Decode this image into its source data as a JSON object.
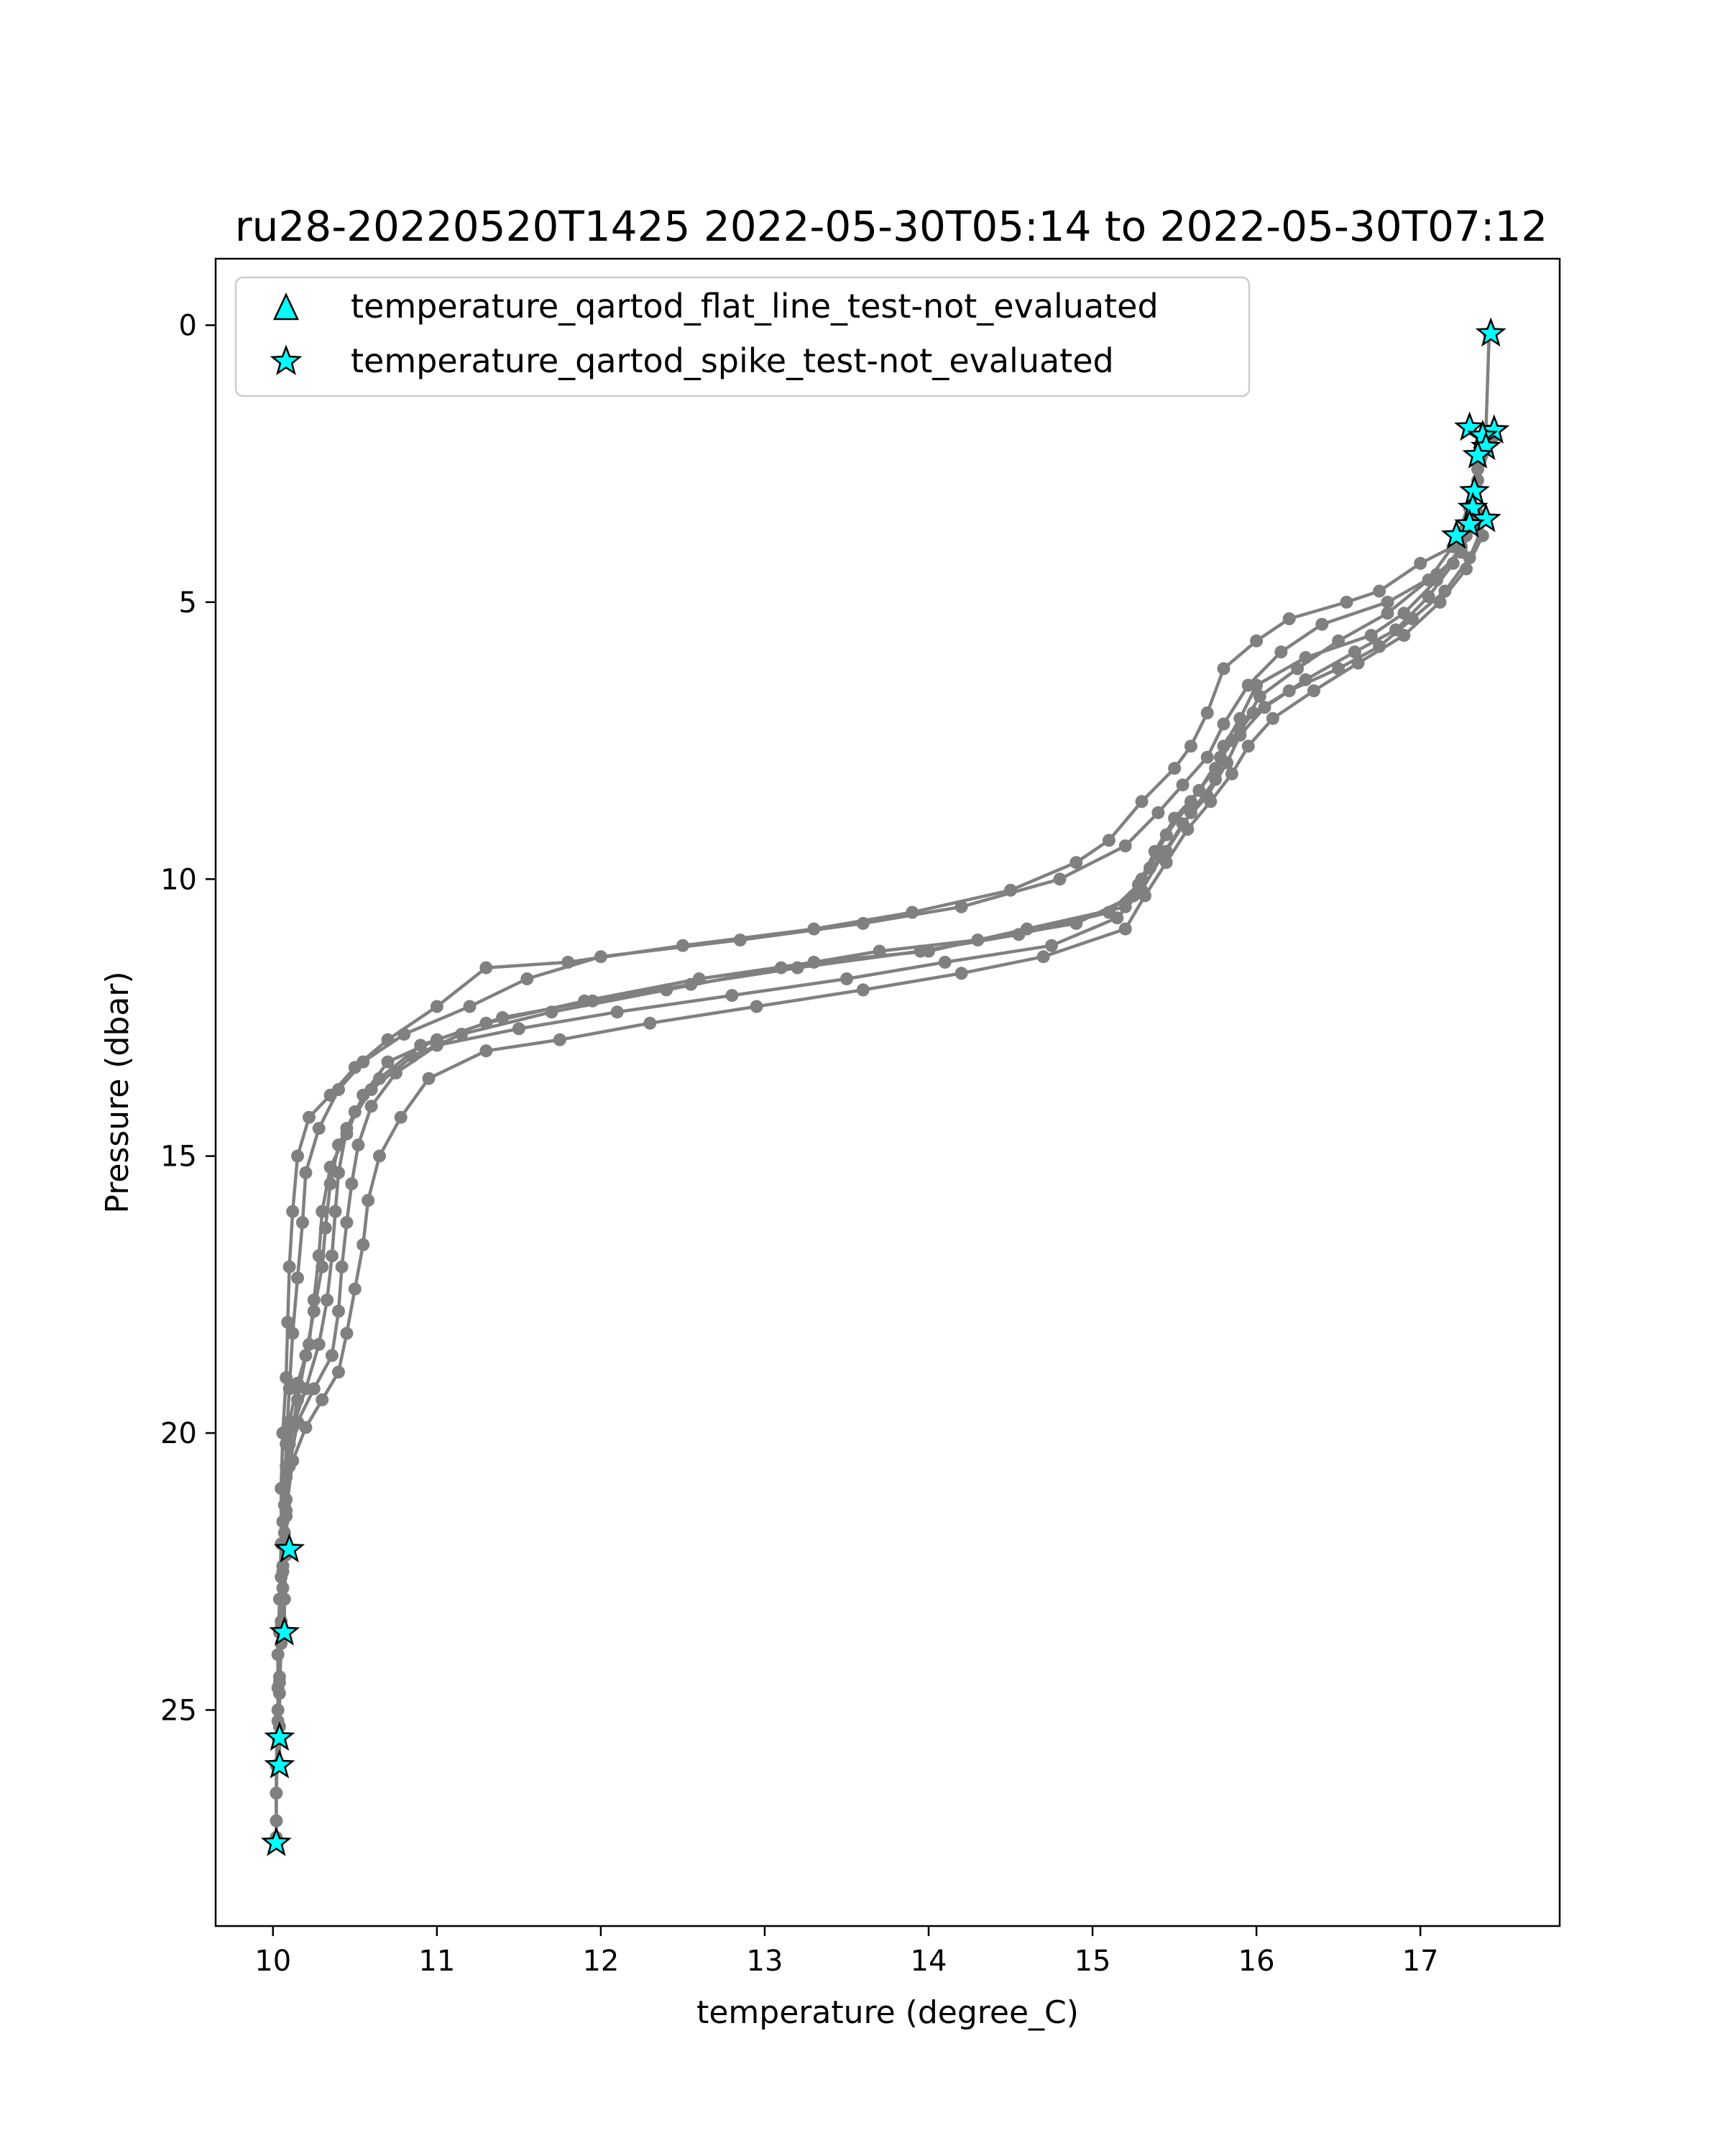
{
  "chart_data": {
    "type": "line",
    "title": "ru28-20220520T1425 2022-05-30T05:14 to 2022-05-30T07:12",
    "xlabel": "temperature (degree_C)",
    "ylabel": "Pressure (dbar)",
    "xlim": [
      9.65,
      17.85
    ],
    "ylim": [
      28.9,
      -1.2
    ],
    "y_inverted": true,
    "grid": false,
    "x_ticks": [
      10,
      11,
      12,
      13,
      14,
      15,
      16,
      17
    ],
    "y_ticks": [
      0,
      5,
      10,
      15,
      20,
      25
    ],
    "colors": {
      "profile": "#808080",
      "marker": "#00ffff",
      "marker_edge": "#000000"
    },
    "legend": {
      "placement": "upper-left",
      "entries": [
        {
          "label": "temperature_qartod_flat_line_test-not_evaluated",
          "marker": "triangle"
        },
        {
          "label": "temperature_qartod_spike_test-not_evaluated",
          "marker": "star"
        }
      ]
    },
    "series": [
      {
        "points": [
          [
            17.42,
            0.15
          ],
          [
            17.4,
            1.9
          ],
          [
            17.35,
            2.6
          ],
          [
            17.3,
            3.3
          ],
          [
            17.28,
            3.8
          ],
          [
            17.2,
            4.0
          ],
          [
            17.0,
            4.3
          ],
          [
            16.75,
            4.8
          ],
          [
            16.55,
            5.0
          ],
          [
            16.2,
            5.3
          ],
          [
            16.0,
            5.7
          ],
          [
            15.8,
            6.2
          ],
          [
            15.7,
            7.0
          ],
          [
            15.6,
            7.6
          ],
          [
            15.5,
            8.0
          ],
          [
            15.3,
            8.6
          ],
          [
            15.1,
            9.3
          ],
          [
            14.9,
            9.7
          ],
          [
            14.5,
            10.2
          ],
          [
            13.9,
            10.6
          ],
          [
            13.3,
            10.9
          ],
          [
            12.5,
            11.2
          ],
          [
            11.8,
            11.5
          ],
          [
            11.3,
            11.6
          ],
          [
            11.0,
            12.3
          ],
          [
            10.7,
            12.9
          ],
          [
            10.5,
            13.4
          ],
          [
            10.35,
            13.9
          ],
          [
            10.22,
            14.3
          ],
          [
            10.15,
            15.0
          ],
          [
            10.12,
            16.0
          ],
          [
            10.1,
            17.0
          ],
          [
            10.09,
            18.0
          ],
          [
            10.08,
            19.0
          ],
          [
            10.06,
            20.0
          ],
          [
            10.05,
            21.0
          ],
          [
            10.05,
            22.0
          ],
          [
            10.04,
            23.0
          ],
          [
            10.03,
            24.0
          ],
          [
            10.03,
            25.0
          ],
          [
            10.02,
            26.0
          ],
          [
            10.02,
            27.0
          ],
          [
            10.02,
            27.4
          ]
        ]
      },
      {
        "points": [
          [
            17.45,
            2.0
          ],
          [
            17.35,
            2.8
          ],
          [
            17.32,
            3.6
          ],
          [
            17.25,
            4.1
          ],
          [
            17.1,
            4.5
          ],
          [
            16.8,
            5.0
          ],
          [
            16.4,
            5.4
          ],
          [
            16.15,
            5.9
          ],
          [
            15.95,
            6.5
          ],
          [
            15.8,
            7.2
          ],
          [
            15.7,
            7.8
          ],
          [
            15.55,
            8.3
          ],
          [
            15.4,
            8.8
          ],
          [
            15.2,
            9.4
          ],
          [
            14.8,
            10.0
          ],
          [
            14.2,
            10.5
          ],
          [
            13.6,
            10.8
          ],
          [
            12.85,
            11.1
          ],
          [
            12.0,
            11.4
          ],
          [
            11.55,
            11.8
          ],
          [
            11.2,
            12.3
          ],
          [
            10.8,
            12.8
          ],
          [
            10.55,
            13.3
          ],
          [
            10.4,
            13.8
          ],
          [
            10.28,
            14.5
          ],
          [
            10.2,
            15.3
          ],
          [
            10.18,
            16.2
          ],
          [
            10.15,
            17.2
          ],
          [
            10.12,
            18.2
          ],
          [
            10.1,
            19.2
          ],
          [
            10.08,
            20.2
          ],
          [
            10.07,
            21.3
          ],
          [
            10.1,
            22.1
          ]
        ]
      },
      {
        "points": [
          [
            17.35,
            3.4
          ],
          [
            17.25,
            4.0
          ],
          [
            17.1,
            4.6
          ],
          [
            16.9,
            5.2
          ],
          [
            16.7,
            5.6
          ],
          [
            16.3,
            6.0
          ],
          [
            16.0,
            6.5
          ],
          [
            15.9,
            7.1
          ],
          [
            15.8,
            7.6
          ],
          [
            15.75,
            8.2
          ],
          [
            15.6,
            8.8
          ],
          [
            15.45,
            9.5
          ],
          [
            15.3,
            10.0
          ],
          [
            15.2,
            10.5
          ],
          [
            14.6,
            10.9
          ],
          [
            14.0,
            11.3
          ],
          [
            13.3,
            11.5
          ],
          [
            12.6,
            11.8
          ],
          [
            11.9,
            12.2
          ],
          [
            11.3,
            12.6
          ],
          [
            10.9,
            13.0
          ],
          [
            10.65,
            13.6
          ],
          [
            10.5,
            14.2
          ],
          [
            10.4,
            14.8
          ],
          [
            10.35,
            15.5
          ],
          [
            10.32,
            16.3
          ],
          [
            10.3,
            17.0
          ],
          [
            10.25,
            17.8
          ],
          [
            10.2,
            18.6
          ],
          [
            10.15,
            19.4
          ],
          [
            10.1,
            20.2
          ],
          [
            10.08,
            21.2
          ],
          [
            10.08,
            22.2
          ],
          [
            10.07,
            23.0
          ],
          [
            10.07,
            23.6
          ]
        ]
      },
      {
        "points": [
          [
            17.4,
            3.5
          ],
          [
            17.3,
            4.2
          ],
          [
            17.15,
            4.8
          ],
          [
            16.95,
            5.3
          ],
          [
            16.75,
            5.8
          ],
          [
            16.5,
            6.2
          ],
          [
            16.2,
            6.6
          ],
          [
            15.98,
            7.0
          ],
          [
            15.85,
            7.5
          ],
          [
            15.75,
            8.0
          ],
          [
            15.6,
            8.6
          ],
          [
            15.45,
            9.2
          ],
          [
            15.35,
            9.8
          ],
          [
            15.25,
            10.3
          ],
          [
            14.9,
            10.8
          ],
          [
            14.3,
            11.1
          ],
          [
            13.7,
            11.3
          ],
          [
            13.1,
            11.6
          ],
          [
            12.4,
            12.0
          ],
          [
            11.7,
            12.4
          ],
          [
            11.15,
            12.8
          ],
          [
            10.85,
            13.2
          ],
          [
            10.6,
            13.8
          ],
          [
            10.45,
            14.5
          ],
          [
            10.4,
            15.3
          ],
          [
            10.38,
            16.0
          ],
          [
            10.36,
            16.8
          ],
          [
            10.33,
            17.6
          ],
          [
            10.28,
            18.4
          ],
          [
            10.2,
            19.2
          ],
          [
            10.12,
            19.9
          ],
          [
            10.08,
            20.8
          ],
          [
            10.07,
            21.8
          ],
          [
            10.06,
            22.8
          ],
          [
            10.05,
            23.8
          ],
          [
            10.04,
            24.7
          ],
          [
            10.04,
            25.5
          ]
        ]
      },
      {
        "points": [
          [
            17.3,
            3.6
          ],
          [
            17.2,
            4.3
          ],
          [
            17.05,
            4.9
          ],
          [
            16.85,
            5.5
          ],
          [
            16.6,
            5.9
          ],
          [
            16.3,
            6.4
          ],
          [
            16.05,
            6.9
          ],
          [
            15.9,
            7.4
          ],
          [
            15.82,
            7.9
          ],
          [
            15.7,
            8.5
          ],
          [
            15.55,
            9.0
          ],
          [
            15.42,
            9.6
          ],
          [
            15.3,
            10.2
          ],
          [
            15.15,
            10.7
          ],
          [
            14.75,
            11.2
          ],
          [
            14.1,
            11.5
          ],
          [
            13.5,
            11.8
          ],
          [
            12.8,
            12.1
          ],
          [
            12.1,
            12.4
          ],
          [
            11.5,
            12.7
          ],
          [
            11.0,
            13.0
          ],
          [
            10.75,
            13.5
          ],
          [
            10.6,
            14.1
          ],
          [
            10.52,
            14.8
          ],
          [
            10.48,
            15.5
          ],
          [
            10.45,
            16.2
          ],
          [
            10.42,
            17.0
          ],
          [
            10.4,
            17.8
          ],
          [
            10.36,
            18.6
          ],
          [
            10.25,
            19.2
          ],
          [
            10.15,
            19.8
          ],
          [
            10.1,
            20.6
          ],
          [
            10.08,
            21.5
          ],
          [
            10.06,
            22.5
          ],
          [
            10.05,
            23.5
          ],
          [
            10.04,
            24.5
          ],
          [
            10.04,
            25.3
          ],
          [
            10.04,
            26.0
          ]
        ]
      },
      {
        "points": [
          [
            17.38,
            3.8
          ],
          [
            17.28,
            4.4
          ],
          [
            17.12,
            5.0
          ],
          [
            16.9,
            5.6
          ],
          [
            16.62,
            6.1
          ],
          [
            16.35,
            6.6
          ],
          [
            16.1,
            7.1
          ],
          [
            15.95,
            7.6
          ],
          [
            15.85,
            8.1
          ],
          [
            15.72,
            8.6
          ],
          [
            15.58,
            9.1
          ],
          [
            15.45,
            9.7
          ],
          [
            15.32,
            10.3
          ],
          [
            15.2,
            10.9
          ],
          [
            14.7,
            11.4
          ],
          [
            14.2,
            11.7
          ],
          [
            13.6,
            12.0
          ],
          [
            12.95,
            12.3
          ],
          [
            12.3,
            12.6
          ],
          [
            11.75,
            12.9
          ],
          [
            11.3,
            13.1
          ],
          [
            10.95,
            13.6
          ],
          [
            10.78,
            14.3
          ],
          [
            10.65,
            15.0
          ],
          [
            10.58,
            15.8
          ],
          [
            10.55,
            16.6
          ],
          [
            10.5,
            17.4
          ],
          [
            10.45,
            18.2
          ],
          [
            10.4,
            18.9
          ],
          [
            10.3,
            19.4
          ],
          [
            10.2,
            19.9
          ],
          [
            10.12,
            20.5
          ],
          [
            10.08,
            21.4
          ],
          [
            10.06,
            22.4
          ],
          [
            10.05,
            23.4
          ],
          [
            10.04,
            24.4
          ],
          [
            10.03,
            25.2
          ],
          [
            10.03,
            26.0
          ]
        ]
      },
      {
        "points": [
          [
            17.35,
            2.4
          ],
          [
            17.32,
            3.0
          ],
          [
            17.22,
            3.9
          ],
          [
            17.05,
            4.6
          ],
          [
            16.8,
            5.2
          ],
          [
            16.5,
            5.7
          ],
          [
            16.25,
            6.2
          ],
          [
            16.02,
            6.7
          ],
          [
            15.9,
            7.3
          ],
          [
            15.78,
            7.8
          ],
          [
            15.65,
            8.4
          ],
          [
            15.5,
            8.9
          ],
          [
            15.38,
            9.5
          ],
          [
            15.28,
            10.1
          ],
          [
            15.1,
            10.6
          ],
          [
            14.55,
            11.0
          ],
          [
            13.95,
            11.3
          ],
          [
            13.2,
            11.6
          ],
          [
            12.55,
            11.9
          ],
          [
            11.95,
            12.2
          ],
          [
            11.4,
            12.5
          ],
          [
            11.0,
            12.9
          ],
          [
            10.7,
            13.3
          ],
          [
            10.55,
            13.9
          ],
          [
            10.45,
            14.6
          ],
          [
            10.35,
            15.2
          ],
          [
            10.3,
            16.0
          ],
          [
            10.28,
            16.8
          ],
          [
            10.25,
            17.6
          ],
          [
            10.22,
            18.4
          ],
          [
            10.15,
            19.1
          ],
          [
            10.1,
            19.8
          ],
          [
            10.08,
            20.6
          ],
          [
            10.06,
            21.6
          ],
          [
            10.05,
            22.6
          ],
          [
            10.04,
            23.6
          ],
          [
            10.03,
            24.6
          ],
          [
            10.03,
            25.5
          ],
          [
            10.02,
            26.5
          ],
          [
            10.02,
            27.3
          ]
        ]
      }
    ],
    "star_markers": [
      [
        17.43,
        0.15
      ],
      [
        17.3,
        1.85
      ],
      [
        17.45,
        1.9
      ],
      [
        17.38,
        2.0
      ],
      [
        17.4,
        2.2
      ],
      [
        17.35,
        2.35
      ],
      [
        17.33,
        3.0
      ],
      [
        17.32,
        3.3
      ],
      [
        17.4,
        3.5
      ],
      [
        17.3,
        3.6
      ],
      [
        17.22,
        3.8
      ],
      [
        10.1,
        22.1
      ],
      [
        10.07,
        23.6
      ],
      [
        10.04,
        25.5
      ],
      [
        10.04,
        26.0
      ],
      [
        10.02,
        27.4
      ]
    ]
  }
}
